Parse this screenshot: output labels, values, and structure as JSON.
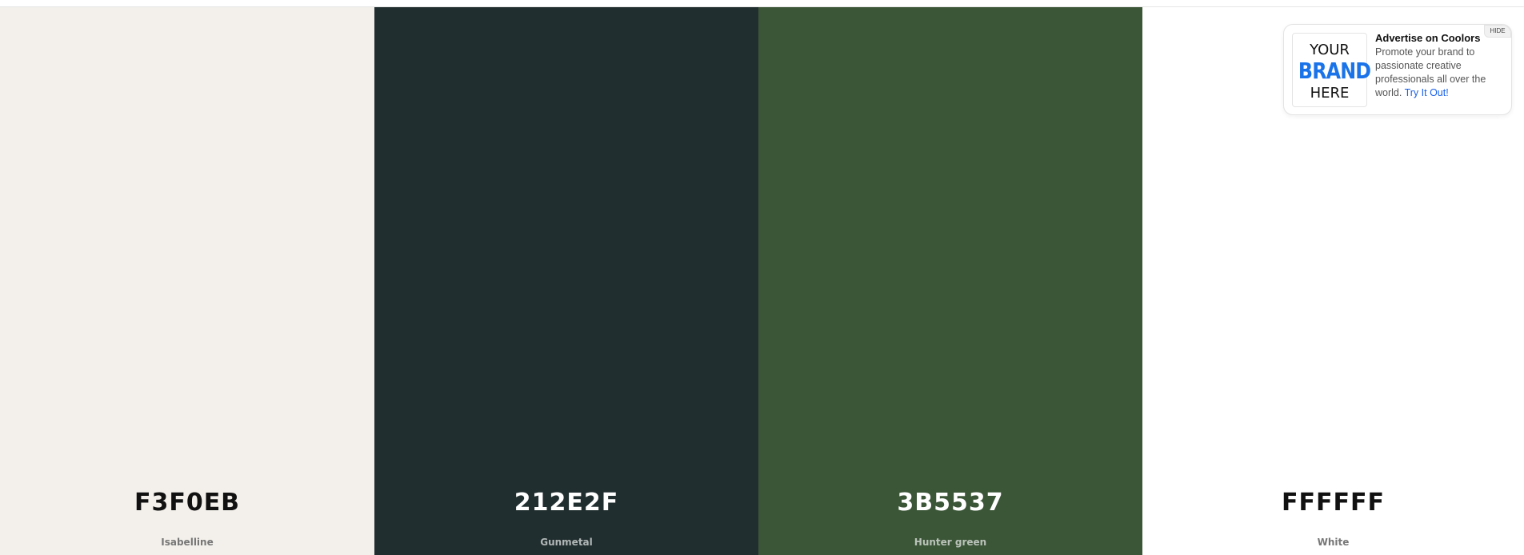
{
  "palette": {
    "colors": [
      {
        "hex": "F3F0EB",
        "name": "Isabelline",
        "bg": "#F3F0EB"
      },
      {
        "hex": "212E2F",
        "name": "Gunmetal",
        "bg": "#212E2F"
      },
      {
        "hex": "3B5537",
        "name": "Hunter green",
        "bg": "#3B5537"
      },
      {
        "hex": "FFFFFF",
        "name": "White",
        "bg": "#FFFFFF"
      }
    ]
  },
  "ad": {
    "logo_line1": "YOUR",
    "logo_line2": "BRAND",
    "logo_line3": "HERE",
    "title": "Advertise on Coolors",
    "body": "Promote your brand to passionate creative professionals all over the world.",
    "link": "Try It Out!",
    "hide_label": "HIDE"
  }
}
